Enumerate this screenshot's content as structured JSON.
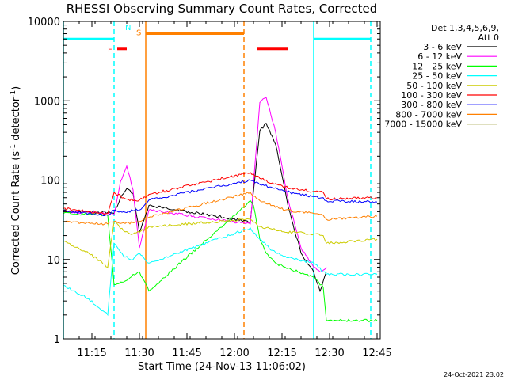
{
  "chart_data": {
    "type": "line",
    "title": "RHESSI Observing Summary Count Rates, Corrected",
    "xlabel": "Start Time (24-Nov-13 11:06:02)",
    "ylabel_parts": [
      "Corrected Count Rate (s",
      "-1",
      " detector",
      "-1",
      ")"
    ],
    "yscale": "log",
    "xlim": [
      "11:06",
      "12:46"
    ],
    "ylim": [
      1,
      10000
    ],
    "x_ticks": [
      "11:15",
      "11:30",
      "11:45",
      "12:00",
      "12:15",
      "12:30",
      "12:45"
    ],
    "y_ticks": [
      {
        "value": 1,
        "label": "1"
      },
      {
        "value": 10,
        "label": "10"
      },
      {
        "value": 100,
        "label": "100"
      },
      {
        "value": 1000,
        "label": "1000"
      },
      {
        "value": 10000,
        "label": "10000"
      }
    ],
    "legend_header": [
      "Det 1,3,4,5,6,9,",
      "Att 0"
    ],
    "legend_position": "right",
    "footer_date": "24-Oct-2021 23:02",
    "series": [
      {
        "name": "3 - 6 keV",
        "color": "#000000",
        "x": [
          "11:06",
          "11:14",
          "11:20",
          "11:22",
          "11:24",
          "11:26",
          "11:28",
          "11:30",
          "11:33",
          "12:05",
          "12:08",
          "12:10",
          "12:13",
          "12:17",
          "12:21",
          "12:25",
          "12:27",
          "12:29"
        ],
        "y": [
          41,
          40,
          39,
          38,
          60,
          78,
          68,
          22,
          48,
          30,
          420,
          520,
          280,
          45,
          12,
          7,
          4,
          7
        ]
      },
      {
        "name": "6 - 12 keV",
        "color": "#ff00ff",
        "x": [
          "11:06",
          "11:14",
          "11:20",
          "11:22",
          "11:24",
          "11:26",
          "11:28",
          "11:30",
          "11:33",
          "12:05",
          "12:08",
          "12:10",
          "12:13",
          "12:17",
          "12:21",
          "12:25",
          "12:27",
          "12:29"
        ],
        "y": [
          40,
          39,
          38,
          37,
          95,
          150,
          75,
          14,
          42,
          28,
          950,
          1100,
          400,
          55,
          14,
          8,
          7,
          8
        ]
      },
      {
        "name": "12 - 25 keV",
        "color": "#00ff00",
        "x": [
          "11:06",
          "11:14",
          "11:20",
          "11:22",
          "11:25",
          "11:28",
          "11:30",
          "11:33",
          "12:05",
          "12:06",
          "12:08",
          "12:10",
          "12:13",
          "12:16",
          "12:20",
          "12:25",
          "12:28",
          "12:29",
          "12:45"
        ],
        "y": [
          38,
          37,
          36,
          4.8,
          5.2,
          6.5,
          7,
          4,
          55,
          48,
          18,
          12,
          9,
          8,
          7,
          6,
          4.5,
          1.7,
          1.7
        ]
      },
      {
        "name": "25 - 50 keV",
        "color": "#00ffff",
        "x": [
          "11:06",
          "11:14",
          "11:20",
          "11:22",
          "11:25",
          "11:28",
          "11:30",
          "11:33",
          "12:05",
          "12:08",
          "12:12",
          "12:16",
          "12:20",
          "12:25",
          "12:28",
          "12:29",
          "12:45"
        ],
        "y": [
          4.7,
          3.2,
          2,
          16,
          11,
          10,
          12,
          9,
          25,
          18,
          13,
          11,
          10,
          9,
          7,
          6.5,
          6.5
        ]
      },
      {
        "name": "50 - 100 keV",
        "color": "#cccc00",
        "x": [
          "11:06",
          "11:14",
          "11:20",
          "11:22",
          "11:25",
          "11:28",
          "11:30",
          "11:33",
          "12:05",
          "12:08",
          "12:12",
          "12:16",
          "12:20",
          "12:25",
          "12:28",
          "12:29",
          "12:45"
        ],
        "y": [
          17,
          12,
          8,
          30,
          23,
          21,
          22,
          26,
          32,
          26,
          24,
          22,
          22,
          21,
          20,
          16,
          18
        ]
      },
      {
        "name": "100 - 300 keV",
        "color": "#ff0000",
        "x": [
          "11:06",
          "11:14",
          "11:20",
          "11:22",
          "11:25",
          "11:28",
          "11:30",
          "11:33",
          "12:05",
          "12:08",
          "12:12",
          "12:16",
          "12:20",
          "12:25",
          "12:28",
          "12:29",
          "12:45"
        ],
        "y": [
          44,
          40,
          38,
          70,
          60,
          55,
          56,
          66,
          125,
          105,
          92,
          82,
          76,
          72,
          70,
          58,
          60
        ]
      },
      {
        "name": "300 - 800 keV",
        "color": "#0000ff",
        "x": [
          "11:06",
          "11:14",
          "11:20",
          "11:22",
          "11:25",
          "11:28",
          "11:30",
          "11:33",
          "12:05",
          "12:08",
          "12:12",
          "12:16",
          "12:20",
          "12:25",
          "12:28",
          "12:29",
          "12:45"
        ],
        "y": [
          41,
          38,
          36,
          42,
          40,
          41,
          42,
          56,
          100,
          88,
          80,
          72,
          67,
          62,
          60,
          55,
          53
        ]
      },
      {
        "name": "800 - 7000 keV",
        "color": "#ff8000",
        "x": [
          "11:06",
          "11:14",
          "11:20",
          "11:22",
          "11:25",
          "11:28",
          "11:30",
          "11:33",
          "12:05",
          "12:08",
          "12:12",
          "12:16",
          "12:20",
          "12:25",
          "12:28",
          "12:29",
          "12:45"
        ],
        "y": [
          30,
          29,
          28,
          30,
          29,
          29,
          30,
          34,
          70,
          55,
          48,
          42,
          40,
          38,
          36,
          32,
          35
        ]
      },
      {
        "name": "7000 - 15000 keV",
        "color": "#808000",
        "x": [],
        "y": []
      }
    ],
    "vertical_markers": [
      {
        "time": "11:06",
        "color": "#00ffff",
        "style": "solid"
      },
      {
        "time": "11:22",
        "color": "#00ffff",
        "style": "dashed"
      },
      {
        "time": "11:32",
        "color": "#ff8000",
        "style": "solid"
      },
      {
        "time": "12:03",
        "color": "#ff8000",
        "style": "dashed"
      },
      {
        "time": "12:25",
        "color": "#00ffff",
        "style": "solid"
      },
      {
        "time": "12:43",
        "color": "#00ffff",
        "style": "dashed"
      }
    ],
    "flag_bars": [
      {
        "label": "",
        "color": "#00ffff",
        "start": "11:06",
        "end": "11:22",
        "level": 6000
      },
      {
        "label": "N",
        "color": "#00ffff",
        "start": "",
        "end": "",
        "level": 8500
      },
      {
        "label": "F",
        "color": "#ff0000",
        "start": "11:23",
        "end": "11:26",
        "level": 4500
      },
      {
        "label": "S",
        "color": "#ff8000",
        "start": "11:32",
        "end": "12:03",
        "level": 7000
      },
      {
        "label": "",
        "color": "#ff0000",
        "start": "12:07",
        "end": "12:17",
        "level": 4500
      },
      {
        "label": "",
        "color": "#00ffff",
        "start": "12:25",
        "end": "12:43",
        "level": 6000
      }
    ]
  }
}
